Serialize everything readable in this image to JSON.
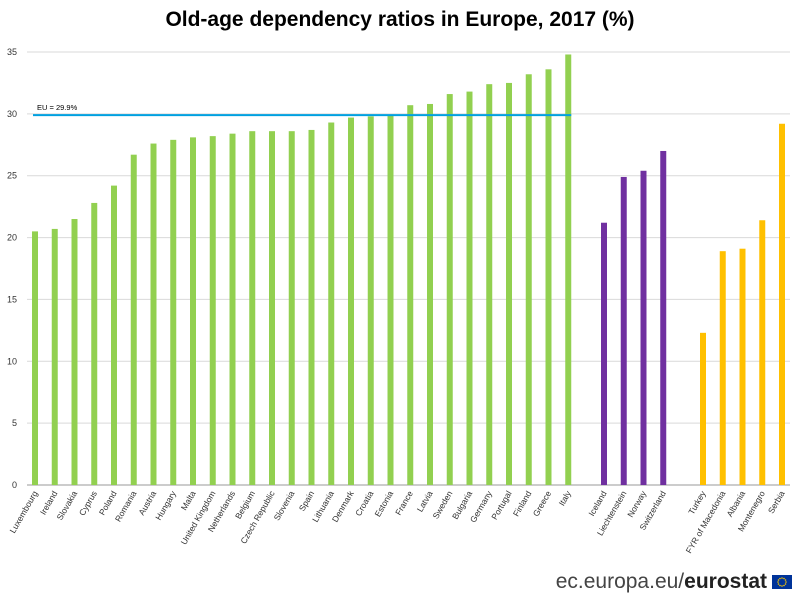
{
  "chart_data": {
    "type": "bar",
    "title": "Old-age dependency ratios in Europe, 2017 (%)",
    "xlabel": "",
    "ylabel": "",
    "ylim": [
      0,
      35
    ],
    "yticks": [
      0,
      5,
      10,
      15,
      20,
      25,
      30,
      35
    ],
    "grid": true,
    "groups": [
      {
        "color": "#92d050",
        "categories": [
          "Luxembourg",
          "Ireland",
          "Slovakia",
          "Cyprus",
          "Poland",
          "Romania",
          "Austria",
          "Hungary",
          "Malta",
          "United Kingdom",
          "Netherlands",
          "Belgium",
          "Czech Republic",
          "Slovenia",
          "Spain",
          "Lithuania",
          "Denmark",
          "Croatia",
          "Estonia",
          "France",
          "Latvia",
          "Sweden",
          "Bulgaria",
          "Germany",
          "Portugal",
          "Finland",
          "Greece",
          "Italy"
        ],
        "values": [
          20.5,
          20.7,
          21.5,
          22.8,
          24.2,
          26.7,
          27.6,
          27.9,
          28.1,
          28.2,
          28.4,
          28.6,
          28.6,
          28.6,
          28.7,
          29.3,
          29.7,
          29.8,
          29.9,
          30.7,
          30.8,
          31.6,
          31.8,
          32.4,
          32.5,
          33.2,
          33.6,
          34.8
        ]
      },
      {
        "color": "#7030a0",
        "categories": [
          "Iceland",
          "Liechtenstein",
          "Norway",
          "Switzerland"
        ],
        "values": [
          21.2,
          24.9,
          25.4,
          27.0
        ]
      },
      {
        "color": "#ffc000",
        "categories": [
          "Turkey",
          "FYR of Macedonia",
          "Albania",
          "Montenegro",
          "Serbia"
        ],
        "values": [
          12.3,
          18.9,
          19.1,
          21.4,
          29.2
        ]
      }
    ],
    "reference_line": {
      "label": "EU = 29.9%",
      "value": 29.9,
      "color": "#00a0e0"
    }
  },
  "footer": {
    "source_prefix": "ec.europa.eu/",
    "source_brand": "eurostat"
  }
}
